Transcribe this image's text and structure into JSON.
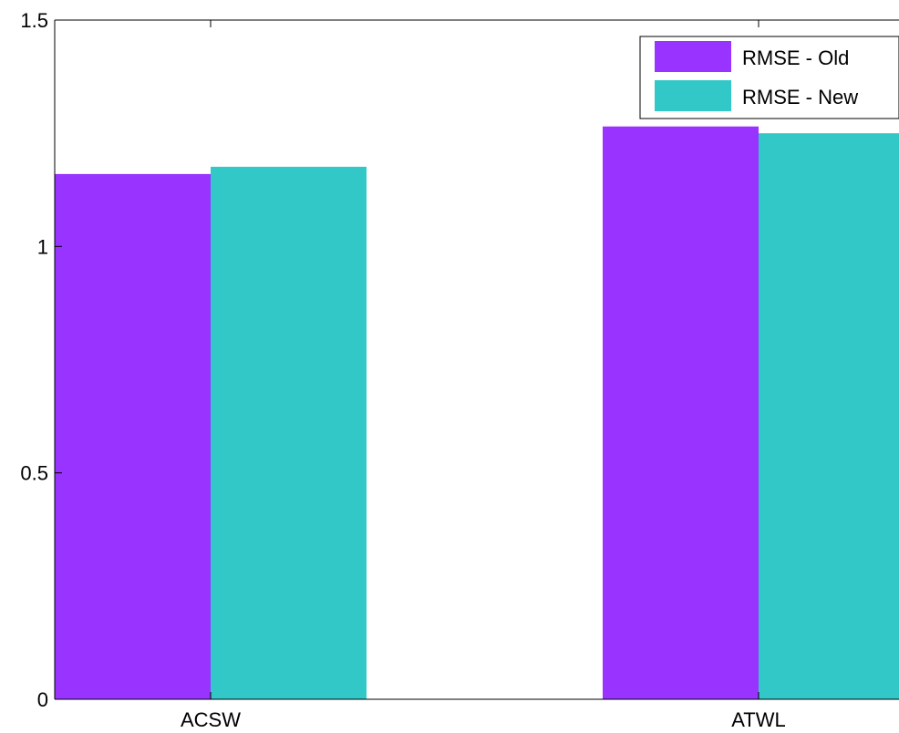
{
  "chart_data": {
    "type": "bar",
    "categories": [
      "ACSW",
      "ATWL"
    ],
    "series": [
      {
        "name": "RMSE - Old",
        "values": [
          1.16,
          1.265
        ],
        "color": "#9933ff"
      },
      {
        "name": "RMSE - New",
        "values": [
          1.176,
          1.25
        ],
        "color": "#33c8c8"
      }
    ],
    "ylim": [
      0,
      1.5
    ],
    "yticks": [
      {
        "value": 0,
        "label": "0"
      },
      {
        "value": 0.5,
        "label": "0.5"
      },
      {
        "value": 1,
        "label": "1"
      },
      {
        "value": 1.5,
        "label": "1.5"
      }
    ],
    "grid": false,
    "legend_position": "top-right",
    "title": "",
    "xlabel": "",
    "ylabel": ""
  }
}
